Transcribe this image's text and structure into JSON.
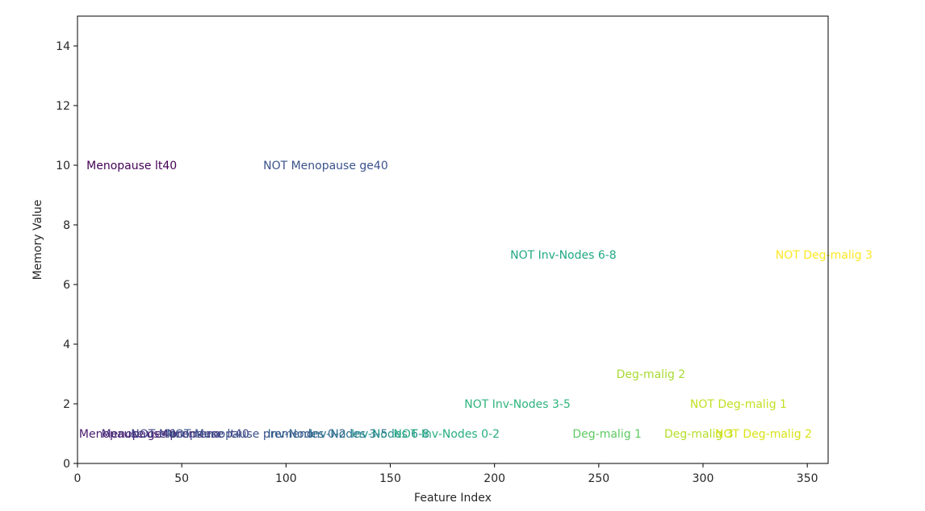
{
  "chart_data": {
    "type": "scatter",
    "title": "",
    "xlabel": "Feature Index",
    "ylabel": "Memory Value",
    "xlim": [
      0,
      360
    ],
    "ylim": [
      0,
      15
    ],
    "xticks": [
      0,
      50,
      100,
      150,
      200,
      250,
      300,
      350
    ],
    "yticks": [
      0,
      2,
      4,
      6,
      8,
      10,
      12,
      14
    ],
    "grid": false,
    "legend": "none",
    "colormap": "viridis",
    "points": [
      {
        "x": 26,
        "y": 10,
        "label": "Menopause lt40",
        "color": "#440154"
      },
      {
        "x": 119,
        "y": 10,
        "label": "NOT Menopause ge40",
        "color": "#3b528b"
      },
      {
        "x": 233,
        "y": 7,
        "label": "NOT Inv-Nodes 6-8",
        "color": "#22a884"
      },
      {
        "x": 358,
        "y": 7,
        "label": "NOT Deg-malig 3",
        "color": "#fde725"
      },
      {
        "x": 275,
        "y": 3,
        "label": "Deg-malig 2",
        "color": "#a8db34"
      },
      {
        "x": 211,
        "y": 2,
        "label": "NOT Inv-Nodes 3-5",
        "color": "#2fb47c"
      },
      {
        "x": 317,
        "y": 2,
        "label": "NOT Deg-malig 1",
        "color": "#c2df23"
      },
      {
        "x": 24,
        "y": 1,
        "label": "Menopause ge40",
        "color": "#481a6c"
      },
      {
        "x": 40,
        "y": 1,
        "label": "Menopause premeno",
        "color": "#472f7d"
      },
      {
        "x": 54,
        "y": 1,
        "label": "NOT Menopause lt40",
        "color": "#414487"
      },
      {
        "x": 78,
        "y": 1,
        "label": "NOT Menopause premeno",
        "color": "#3b528b"
      },
      {
        "x": 110,
        "y": 1,
        "label": "Inv-Nodes 0-2",
        "color": "#33638d"
      },
      {
        "x": 130,
        "y": 1,
        "label": "Inv-Nodes 3-5",
        "color": "#2c728e"
      },
      {
        "x": 150,
        "y": 1,
        "label": "Inv-Nodes 6-8",
        "color": "#21918c"
      },
      {
        "x": 177,
        "y": 1,
        "label": "NOT Inv-Nodes 0-2",
        "color": "#28ae80"
      },
      {
        "x": 254,
        "y": 1,
        "label": "Deg-malig 1",
        "color": "#5ec962"
      },
      {
        "x": 298,
        "y": 1,
        "label": "Deg-malig 3",
        "color": "#b5de2b"
      },
      {
        "x": 329,
        "y": 1,
        "label": "NOT Deg-malig 2",
        "color": "#d8e219"
      }
    ]
  }
}
